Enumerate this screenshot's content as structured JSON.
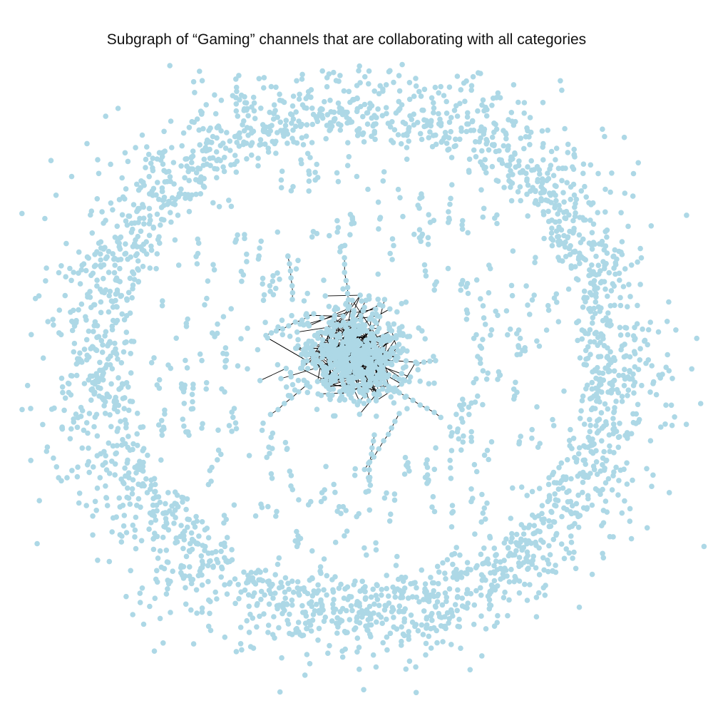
{
  "title": "Subgraph of “Gaming” channels that are collaborating with all categories",
  "colors": {
    "node": "#add8e6",
    "edge": "#000000",
    "background": "#ffffff"
  },
  "graph": {
    "layout": "force-directed",
    "structure": "dense central cluster surrounded by a sparse ring of isolated nodes; short chains and pairs scattered in the middle band",
    "edges_visible_only_in_core": true
  }
}
